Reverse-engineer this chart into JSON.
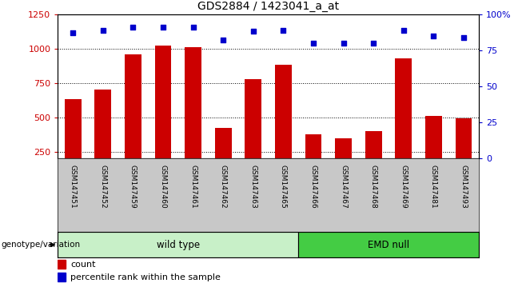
{
  "title": "GDS2884 / 1423041_a_at",
  "samples": [
    "GSM147451",
    "GSM147452",
    "GSM147459",
    "GSM147460",
    "GSM147461",
    "GSM147462",
    "GSM147463",
    "GSM147465",
    "GSM147466",
    "GSM147467",
    "GSM147468",
    "GSM147469",
    "GSM147481",
    "GSM147493"
  ],
  "counts": [
    630,
    700,
    960,
    1020,
    1010,
    420,
    775,
    880,
    375,
    345,
    400,
    930,
    510,
    490
  ],
  "percentiles": [
    87,
    89,
    91,
    91,
    91,
    82,
    88,
    89,
    80,
    80,
    80,
    89,
    85,
    84
  ],
  "bar_color": "#cc0000",
  "dot_color": "#0000cc",
  "ylim_left": [
    200,
    1250
  ],
  "ylim_right": [
    0,
    100
  ],
  "yticks_left": [
    250,
    500,
    750,
    1000,
    1250
  ],
  "yticks_right": [
    0,
    25,
    50,
    75,
    100
  ],
  "ytick_labels_right": [
    "0",
    "25",
    "50",
    "75",
    "100%"
  ],
  "group1_label": "wild type",
  "group2_label": "EMD null",
  "group1_count": 8,
  "group2_count": 6,
  "legend_count_label": "count",
  "legend_pct_label": "percentile rank within the sample",
  "genotype_label": "genotype/variation",
  "group1_color": "#c8f0c8",
  "group2_color": "#44cc44",
  "xlabel_area_color": "#c8c8c8",
  "title_fontsize": 10,
  "tick_fontsize": 8,
  "sample_fontsize": 6.5,
  "legend_fontsize": 8,
  "genotype_fontsize": 7.5
}
